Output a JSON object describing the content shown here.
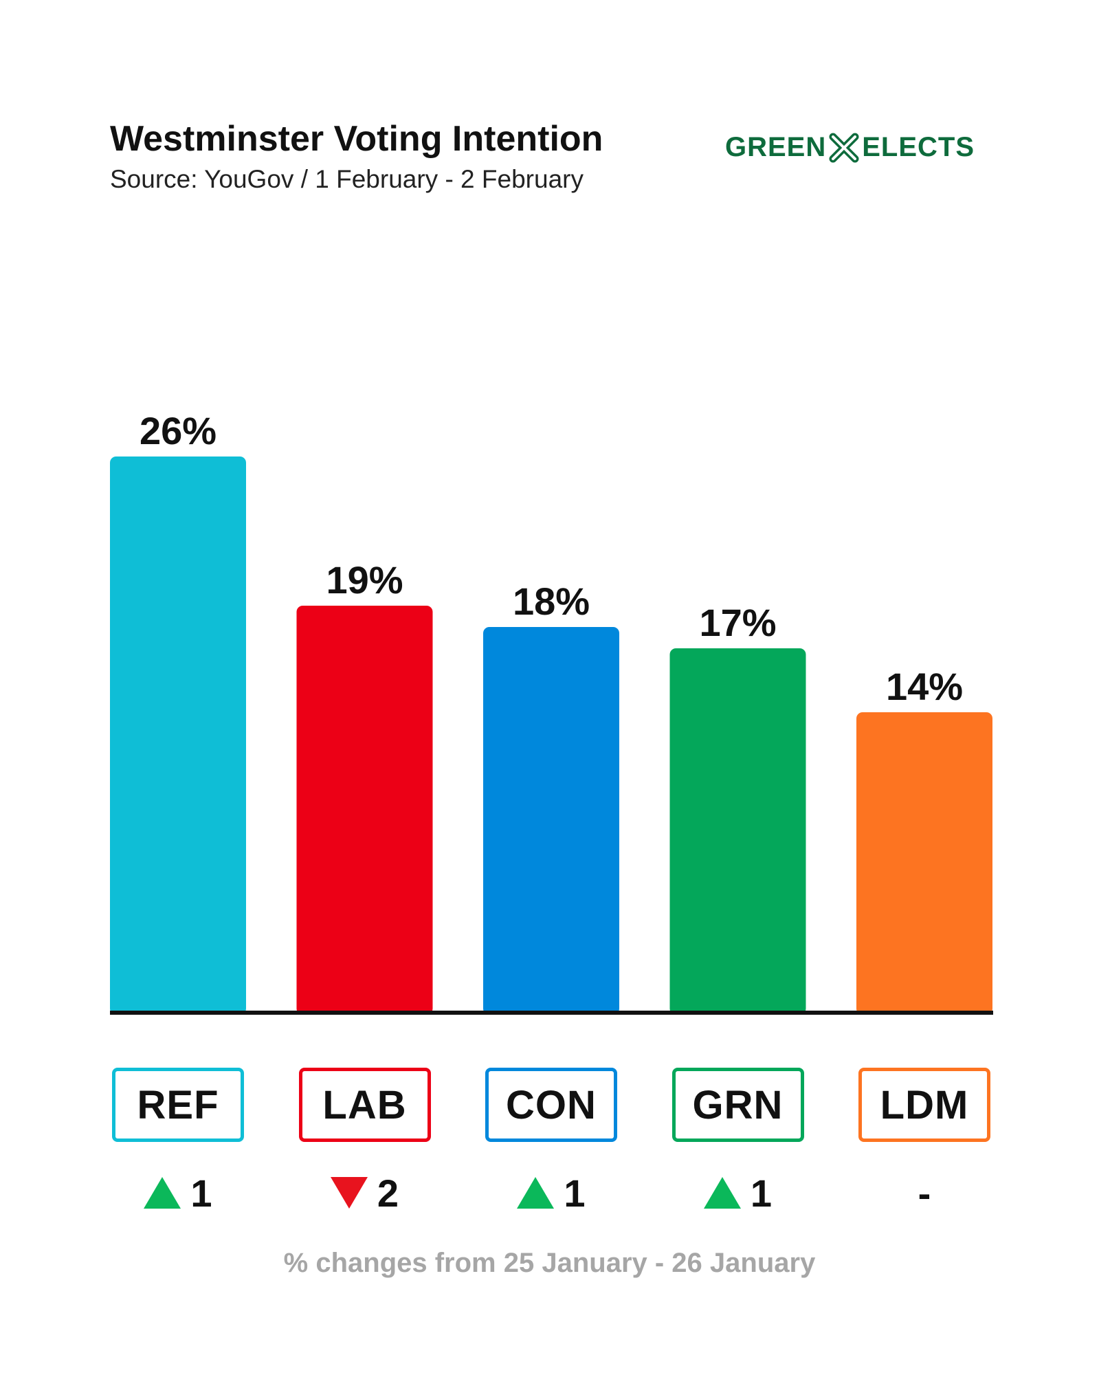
{
  "header": {
    "title": "Westminster Voting Intention",
    "subtitle": "Source: YouGov / 1 February - 2 February",
    "brand_left": "GREEN",
    "brand_right": "ELECTS",
    "brand_icon": "ballot-cross-icon",
    "brand_color": "#0e6b3c"
  },
  "chart_data": {
    "type": "bar",
    "categories": [
      "REF",
      "LAB",
      "CON",
      "GRN",
      "LDM"
    ],
    "values": [
      26,
      19,
      18,
      17,
      14
    ],
    "value_labels": [
      "26%",
      "19%",
      "18%",
      "17%",
      "14%"
    ],
    "colors": [
      "#0fbed6",
      "#ec0016",
      "#0088dc",
      "#04a75a",
      "#fd7421"
    ],
    "changes": [
      {
        "direction": "up",
        "value": "1"
      },
      {
        "direction": "down",
        "value": "2"
      },
      {
        "direction": "up",
        "value": "1"
      },
      {
        "direction": "up",
        "value": "1"
      },
      {
        "direction": "none",
        "value": "-"
      }
    ],
    "ylim": [
      0,
      26
    ],
    "grid": false
  },
  "footnote": "% changes from 25 January - 26 January"
}
